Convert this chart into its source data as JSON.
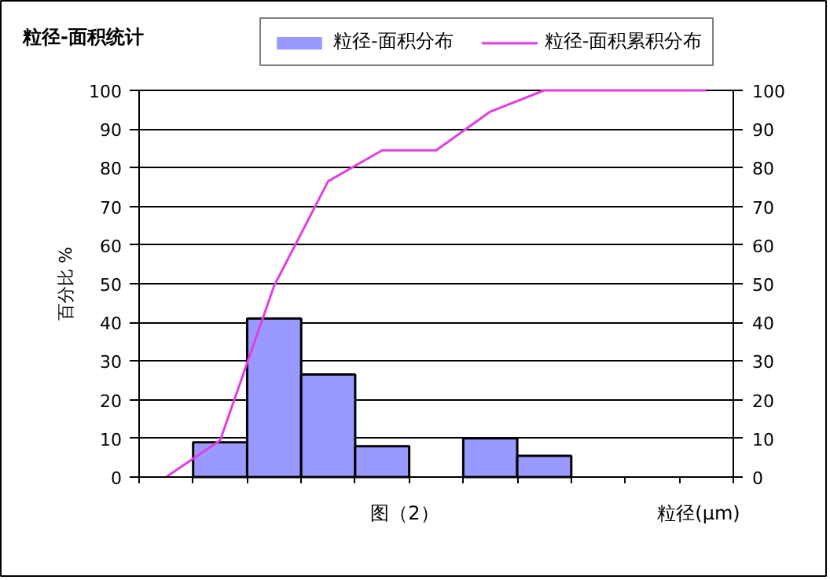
{
  "chart_data": {
    "type": "bar",
    "title": "粒径-面积统计",
    "xlabel": "粒径(μm)",
    "ylabel": "百分比 %",
    "annotations": [
      "图（2）"
    ],
    "categories": [
      null,
      null,
      null,
      null,
      null,
      null,
      null,
      null,
      null,
      null,
      null
    ],
    "series": [
      {
        "name": "粒径-面积分布",
        "color": "#9999ff",
        "values": [
          0,
          9,
          41,
          26.5,
          8,
          0,
          10,
          5.5,
          0,
          0,
          0
        ]
      },
      {
        "name": "粒径-面积累积分布",
        "type": "line",
        "color": "#e040e0",
        "values": [
          0,
          9.5,
          49.5,
          76.5,
          84.5,
          84.5,
          94.5,
          100,
          100,
          100,
          100
        ]
      }
    ],
    "ylim": [
      0,
      100
    ],
    "yticks": [
      0,
      10,
      20,
      30,
      40,
      50,
      60,
      70,
      80,
      90,
      100
    ],
    "y2lim": [
      0,
      100
    ],
    "y2ticks": [
      0,
      10,
      20,
      30,
      40,
      50,
      60,
      70,
      80,
      90,
      100
    ],
    "grid": "y",
    "legend": "top right",
    "tick_labels": "y"
  }
}
